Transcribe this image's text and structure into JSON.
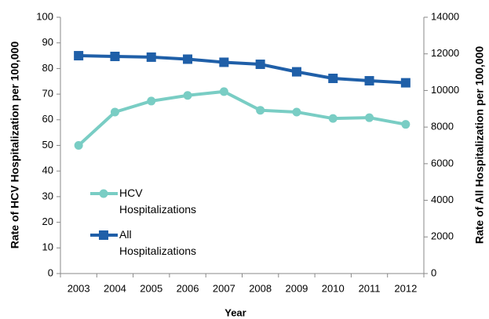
{
  "chart_data": {
    "type": "line",
    "xlabel": "Year",
    "ylabel": "Rate of HCV Hospitalization per 100,000",
    "y2label": "Rate of All Hospitalization per 100,000",
    "categories": [
      "2003",
      "2004",
      "2005",
      "2006",
      "2007",
      "2008",
      "2009",
      "2010",
      "2011",
      "2012"
    ],
    "series": [
      {
        "name": "HCV Hospitalizations",
        "color": "#79cdc4",
        "marker": "circle",
        "values": [
          50,
          63,
          67.3,
          69.5,
          71,
          63.7,
          63,
          60.5,
          60.8,
          58.2
        ]
      },
      {
        "name": "All Hospitalizations",
        "color": "#1f5fa8",
        "marker": "square",
        "axis": "y2",
        "values": [
          11900,
          11860,
          11820,
          11710,
          11540,
          11430,
          11020,
          10660,
          10530,
          10420
        ]
      }
    ],
    "ylim": [
      0,
      100
    ],
    "yticks": [
      0,
      10,
      20,
      30,
      40,
      50,
      60,
      70,
      80,
      90,
      100
    ],
    "y2lim": [
      0,
      14000
    ],
    "y2ticks": [
      0,
      2000,
      4000,
      6000,
      8000,
      10000,
      12000,
      14000
    ],
    "legend": "lower-left"
  }
}
